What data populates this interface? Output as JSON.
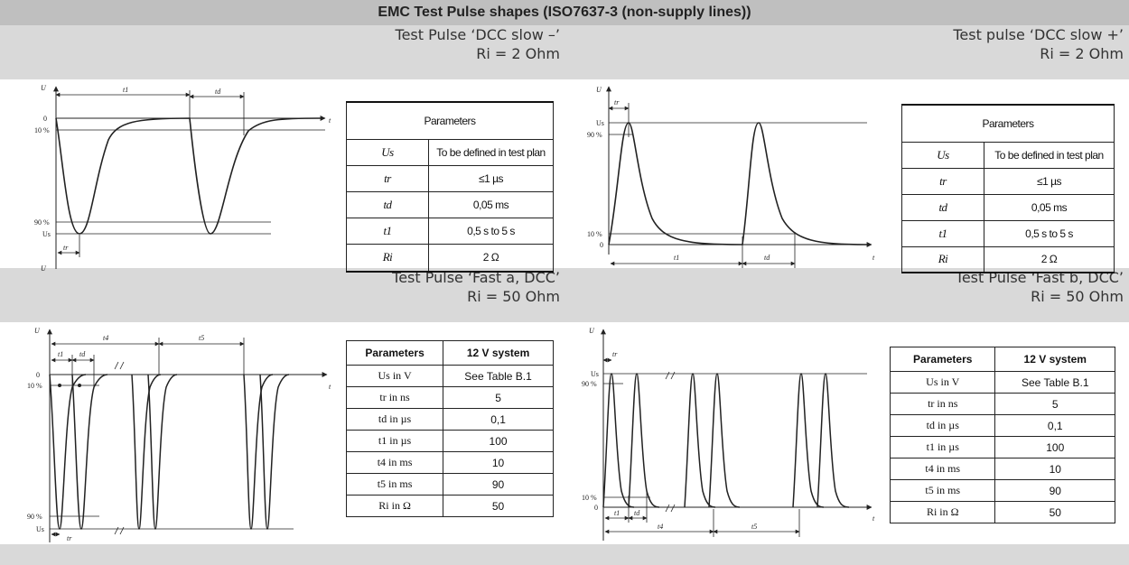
{
  "title": "EMC Test Pulse shapes (ISO7637-3 (non-supply lines))",
  "pulses": [
    {
      "name": "Test Pulse ‘DCC slow –’",
      "ri": "Ri = 2 Ohm",
      "graph": {
        "axis": "U",
        "time": "t",
        "levels": [
          "0",
          "10 %",
          "90 %"
        ],
        "us": "Us",
        "intervals": [
          "t1",
          "td",
          "tr"
        ]
      },
      "table": {
        "header": "Parameters",
        "rows": [
          {
            "sym": "Us",
            "val": "To be defined in test plan"
          },
          {
            "sym": "tr",
            "val": "≤1 µs"
          },
          {
            "sym": "td",
            "val": "0,05 ms"
          },
          {
            "sym": "t1",
            "val": "0,5 s to 5 s"
          },
          {
            "sym": "Ri",
            "val": "2 Ω"
          }
        ]
      }
    },
    {
      "name": "Test pulse ‘DCC slow +’",
      "ri": "Ri = 2 Ohm",
      "graph": {
        "axis": "U",
        "time": "t",
        "levels": [
          "90 %",
          "10 %",
          "0"
        ],
        "us": "Us",
        "intervals": [
          "tr",
          "t1",
          "td"
        ]
      },
      "table": {
        "header": "Parameters",
        "rows": [
          {
            "sym": "Us",
            "val": "To be defined in test plan"
          },
          {
            "sym": "tr",
            "val": "≤1 µs"
          },
          {
            "sym": "td",
            "val": "0,05 ms"
          },
          {
            "sym": "t1",
            "val": "0,5 s to 5 s"
          },
          {
            "sym": "Ri",
            "val": "2 Ω"
          }
        ]
      }
    },
    {
      "name": "Test Pulse ‘Fast a, DCC’",
      "ri": "Ri = 50 Ohm",
      "graph": {
        "axis": "U",
        "time": "t",
        "levels": [
          "0",
          "10 %",
          "90 %"
        ],
        "us": "Us",
        "intervals": [
          "t4",
          "t5",
          "t1",
          "td",
          "tr"
        ]
      },
      "table": {
        "header": [
          "Parameters",
          "12 V system"
        ],
        "rows": [
          {
            "sym": "Us in V",
            "val": "See Table B.1"
          },
          {
            "sym": "tr in ns",
            "val": "5"
          },
          {
            "sym": "td in µs",
            "val": "0,1"
          },
          {
            "sym": "t1 in µs",
            "val": "100"
          },
          {
            "sym": "t4 in ms",
            "val": "10"
          },
          {
            "sym": "t5 in ms",
            "val": "90"
          },
          {
            "sym": "Ri in Ω",
            "val": "50"
          }
        ]
      }
    },
    {
      "name": "Test Pulse ‘Fast b, DCC’",
      "ri": "Ri = 50 Ohm",
      "graph": {
        "axis": "U",
        "time": "t",
        "levels": [
          "Us",
          "90 %",
          "10 %",
          "0"
        ],
        "us": "Us",
        "intervals": [
          "tr",
          "t1",
          "td",
          "t4",
          "t5"
        ]
      },
      "table": {
        "header": [
          "Parameters",
          "12 V system"
        ],
        "rows": [
          {
            "sym": "Us in V",
            "val": "See Table B.1"
          },
          {
            "sym": "tr in ns",
            "val": "5"
          },
          {
            "sym": "td in µs",
            "val": "0,1"
          },
          {
            "sym": "t1 in µs",
            "val": "100"
          },
          {
            "sym": "t4 in ms",
            "val": "10"
          },
          {
            "sym": "t5 in ms",
            "val": "90"
          },
          {
            "sym": "Ri in Ω",
            "val": "50"
          }
        ]
      }
    }
  ]
}
